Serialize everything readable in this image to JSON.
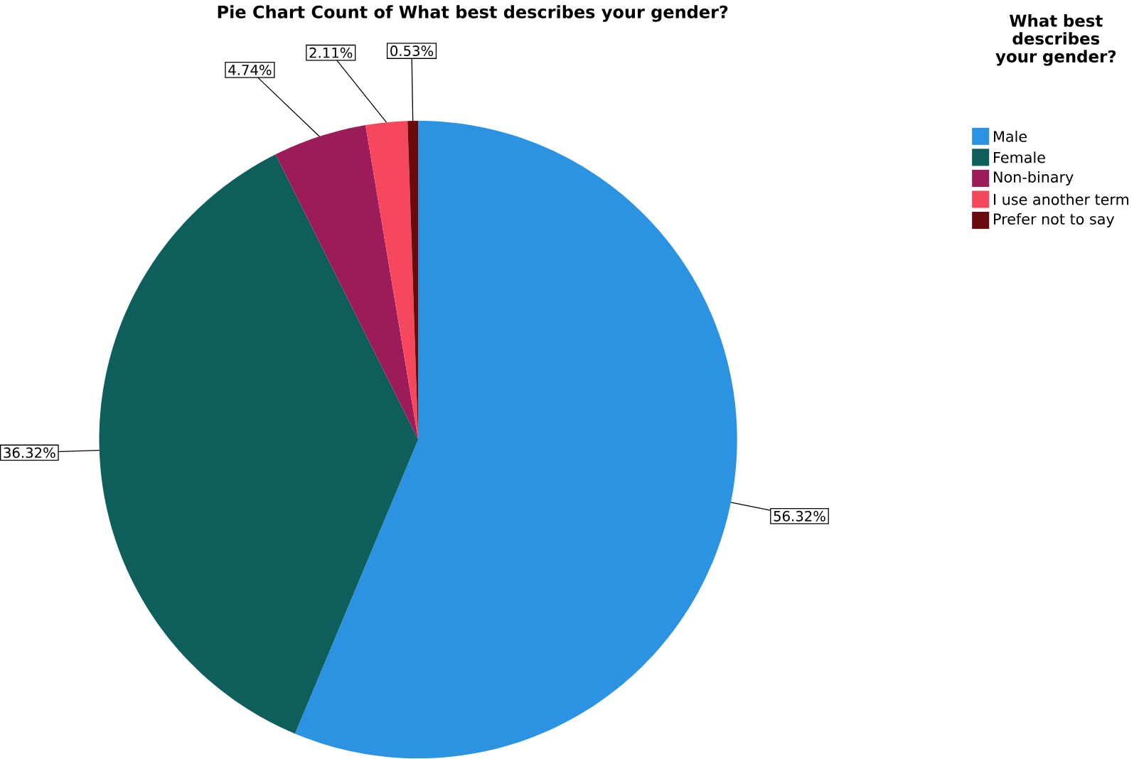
{
  "chart_data": {
    "type": "pie",
    "title": "Pie Chart Count of What best describes your gender?",
    "categories": [
      "Male",
      "Female",
      "Non-binary",
      "I use another term",
      "Prefer not to say"
    ],
    "values": [
      56.32,
      36.32,
      4.74,
      2.11,
      0.53
    ],
    "colors": [
      "#2b93e2",
      "#0e5e5b",
      "#9b1c59",
      "#f5485c",
      "#6a0a0c"
    ],
    "value_labels": [
      "56.32%",
      "36.32%",
      "4.74%",
      "2.11%",
      "0.53%"
    ],
    "legend": "right",
    "legend_title": "What best describes your gender?"
  }
}
